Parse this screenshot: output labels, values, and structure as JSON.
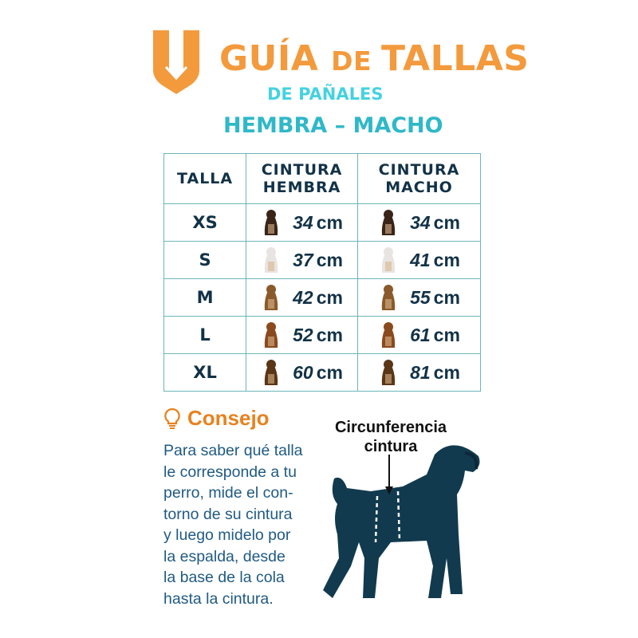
{
  "header": {
    "logo": "V-shield logo",
    "title_part1": "GUÍA ",
    "title_part2": "DE ",
    "title_part3": "TALLAS",
    "subtitle": "DE PAÑALES",
    "gender_line": "HEMBRA – MACHO"
  },
  "colors": {
    "orange": "#f39a3d",
    "cyan": "#45d2e0",
    "teal": "#2fb8c8",
    "navy": "#123247",
    "border": "#6bb5ba"
  },
  "table": {
    "headers": [
      "TALLA",
      "CINTURA HEMBRA",
      "CINTURA MACHO"
    ],
    "header_lines": [
      [
        "TALLA"
      ],
      [
        "CINTURA",
        "HEMBRA"
      ],
      [
        "CINTURA",
        "MACHO"
      ]
    ],
    "unit": "cm",
    "rows": [
      {
        "size": "XS",
        "female": "34",
        "male": "34",
        "dog": "chihuahua"
      },
      {
        "size": "S",
        "female": "37",
        "male": "41",
        "dog": "maltese"
      },
      {
        "size": "M",
        "female": "42",
        "male": "55",
        "dog": "beagle"
      },
      {
        "size": "L",
        "female": "52",
        "male": "61",
        "dog": "cocker-spaniel"
      },
      {
        "size": "XL",
        "female": "60",
        "male": "81",
        "dog": "german-shepherd"
      }
    ]
  },
  "tip": {
    "icon": "lightbulb-icon",
    "title": "Consejo",
    "lines": [
      "Para saber qué talla",
      "le corresponde a tu",
      "perro, mide el con-",
      "torno de su cintura",
      "y luego midelo por",
      "la espalda, desde",
      "la base de la cola",
      "hasta la cintura."
    ]
  },
  "diagram": {
    "label_line1": "Circunferencia",
    "label_line2": "cintura"
  }
}
